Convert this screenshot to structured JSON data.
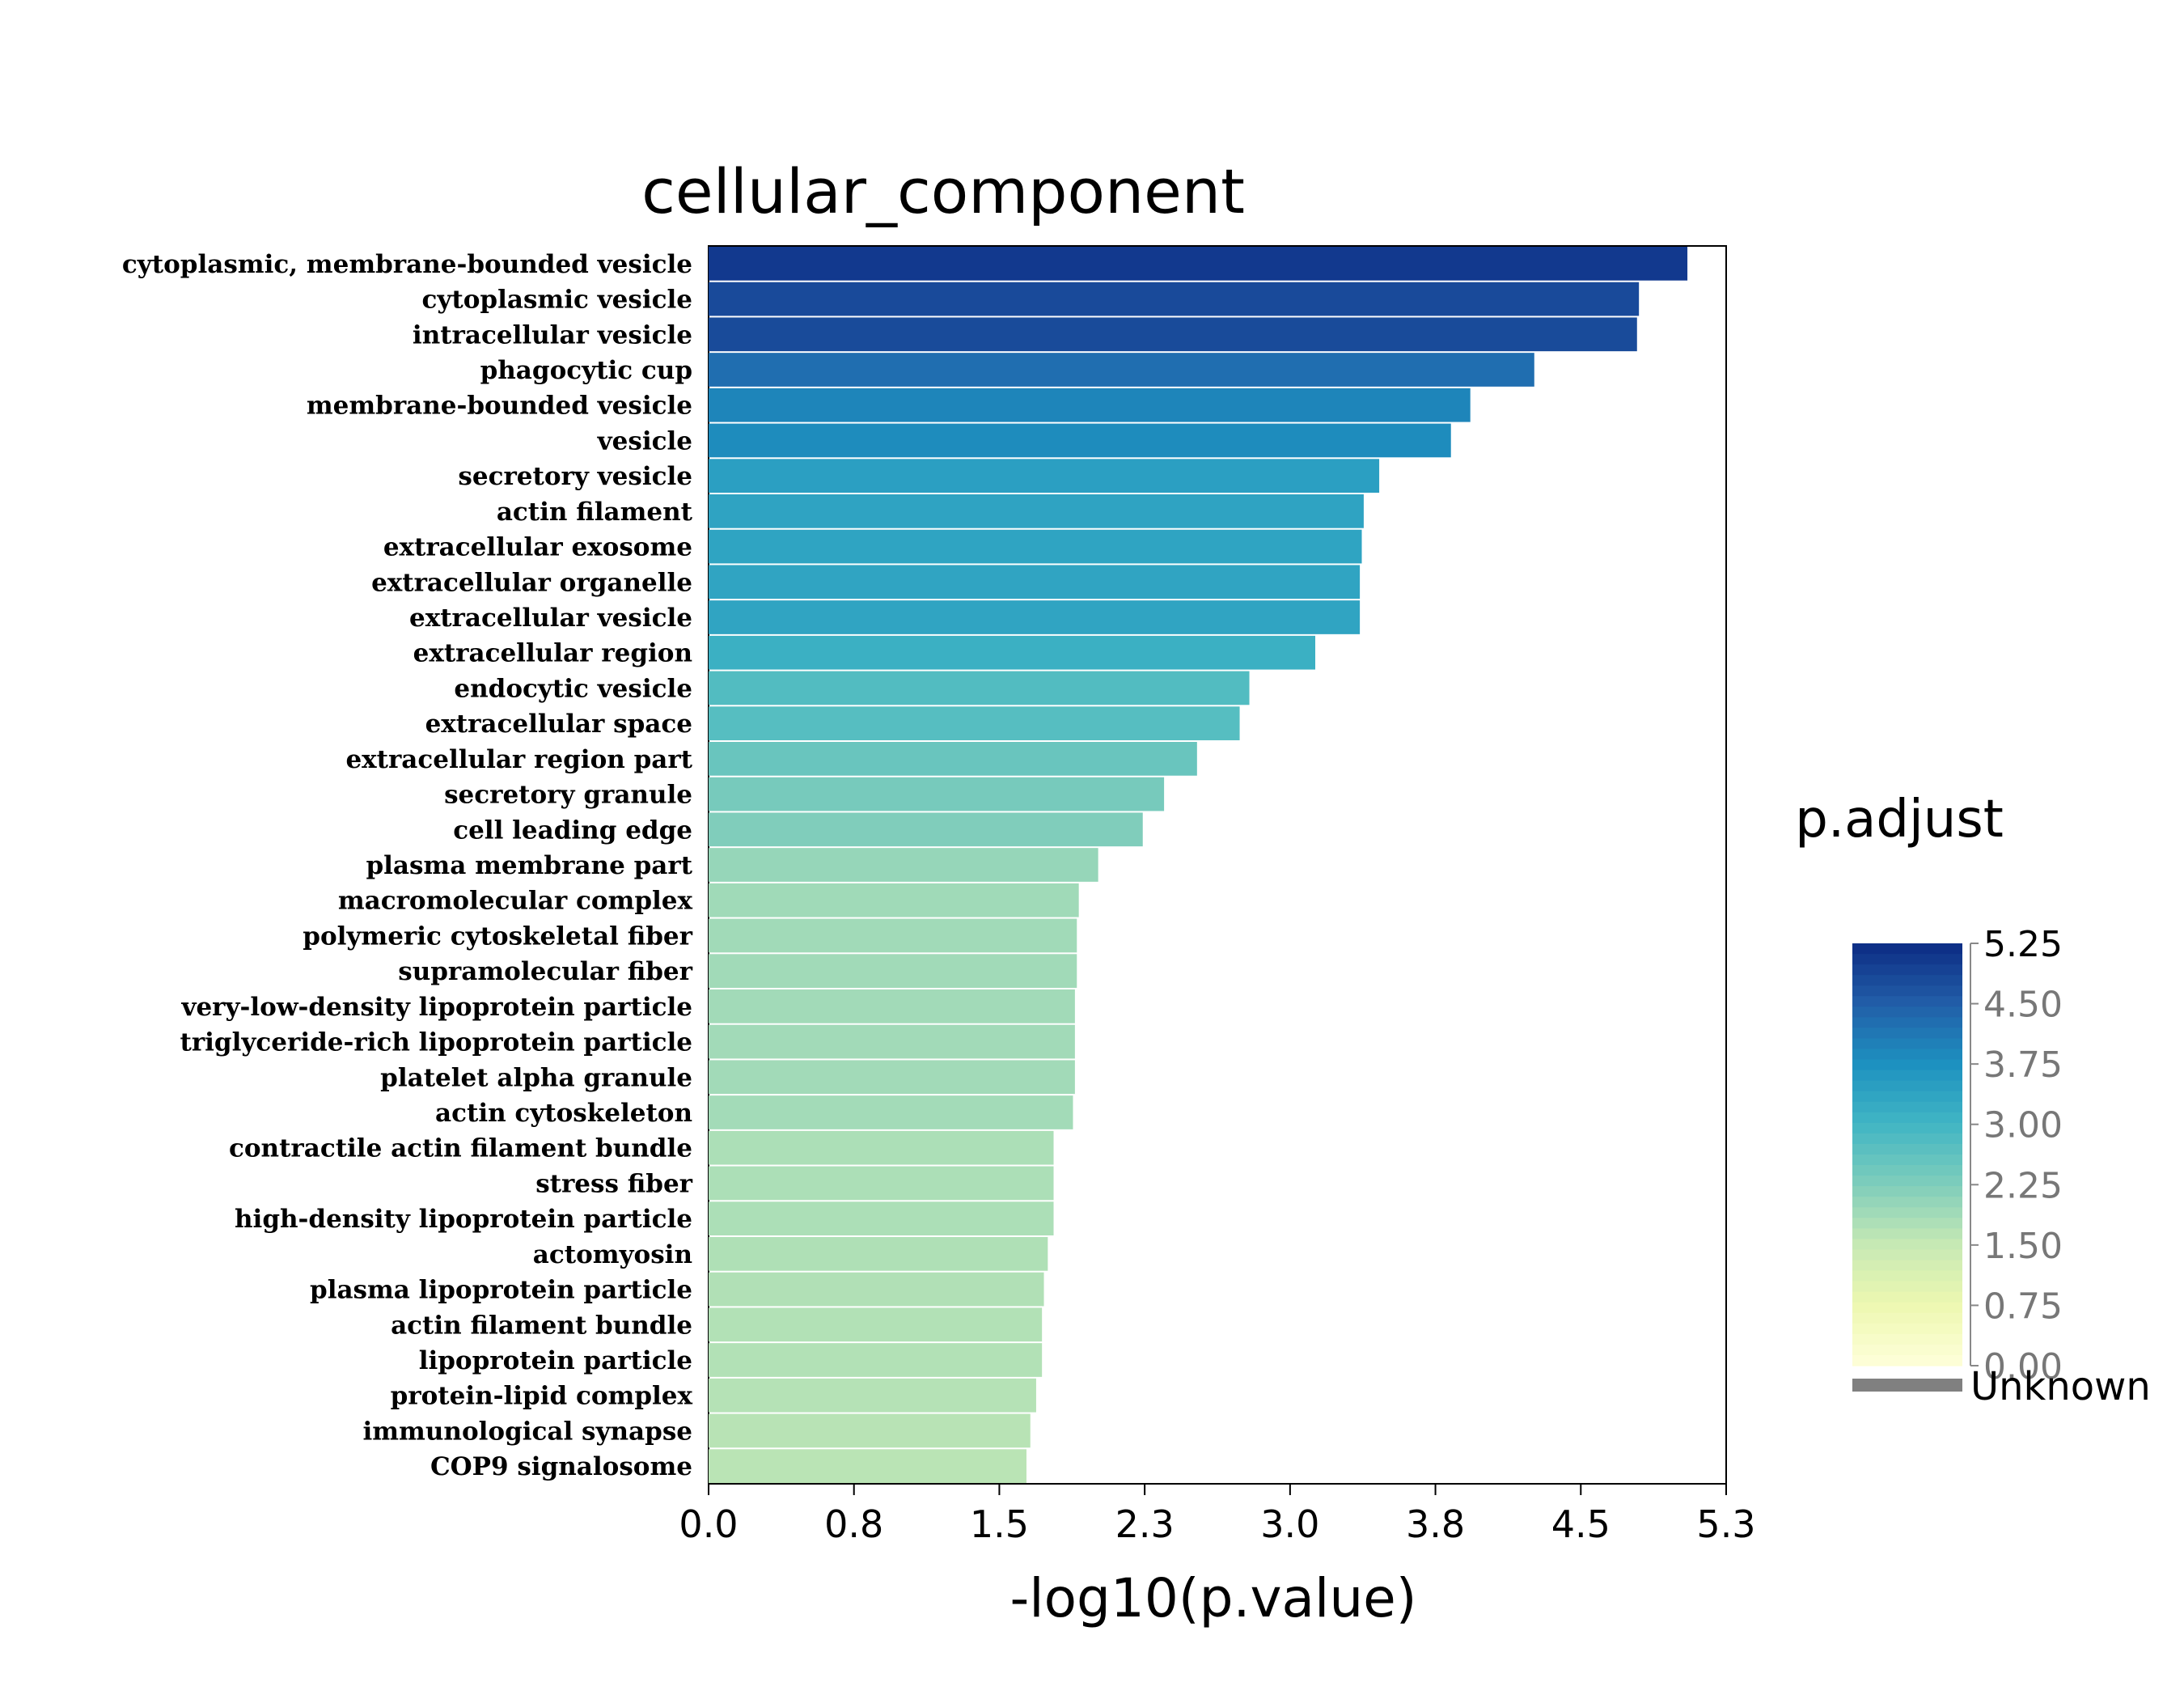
{
  "chart_data": {
    "type": "bar",
    "orientation": "horizontal",
    "title": "cellular_component",
    "xlabel": "-log10(p.value)",
    "ylabel": "",
    "xlim": [
      0,
      5.25
    ],
    "x_ticks": [
      "0.0",
      "0.8",
      "1.5",
      "2.3",
      "3.0",
      "3.8",
      "4.5",
      "5.3"
    ],
    "x_tick_values": [
      0,
      0.75,
      1.5,
      2.25,
      3.0,
      3.75,
      4.5,
      5.25
    ],
    "categories": [
      "cytoplasmic, membrane-bounded vesicle",
      "cytoplasmic vesicle",
      "intracellular vesicle",
      "phagocytic cup",
      "membrane-bounded vesicle",
      "vesicle",
      "secretory vesicle",
      "actin filament",
      "extracellular exosome",
      "extracellular organelle",
      "extracellular vesicle",
      "extracellular region",
      "endocytic vesicle",
      "extracellular space",
      "extracellular region part",
      "secretory granule",
      "cell leading edge",
      "plasma membrane part",
      "macromolecular complex",
      "polymeric cytoskeletal fiber",
      "supramolecular fiber",
      "very-low-density lipoprotein particle",
      "triglyceride-rich lipoprotein particle",
      "platelet alpha granule",
      "actin cytoskeleton",
      "contractile actin filament bundle",
      "stress fiber",
      "high-density lipoprotein particle",
      "actomyosin",
      "plasma lipoprotein particle",
      "actin filament bundle",
      "lipoprotein particle",
      "protein-lipid complex",
      "immunological synapse",
      "COP9 signalosome"
    ],
    "values": [
      5.05,
      4.8,
      4.79,
      4.26,
      3.93,
      3.83,
      3.46,
      3.38,
      3.37,
      3.36,
      3.36,
      3.13,
      2.79,
      2.74,
      2.52,
      2.35,
      2.24,
      2.01,
      1.91,
      1.9,
      1.9,
      1.89,
      1.89,
      1.89,
      1.88,
      1.78,
      1.78,
      1.78,
      1.75,
      1.73,
      1.72,
      1.72,
      1.69,
      1.66,
      1.64
    ],
    "color_values": [
      5.05,
      4.8,
      4.79,
      4.26,
      3.93,
      3.83,
      3.46,
      3.38,
      3.37,
      3.36,
      3.36,
      3.13,
      2.79,
      2.74,
      2.52,
      2.35,
      2.24,
      2.01,
      1.91,
      1.9,
      1.9,
      1.89,
      1.89,
      1.89,
      1.88,
      1.78,
      1.78,
      1.78,
      1.75,
      1.73,
      1.72,
      1.72,
      1.69,
      1.66,
      1.64
    ],
    "legend": {
      "title": "p.adjust",
      "placement": "right",
      "ticks": [
        "5.25",
        "4.50",
        "3.75",
        "3.00",
        "2.25",
        "1.50",
        "0.75",
        "0.00"
      ],
      "tick_values": [
        5.25,
        4.5,
        3.75,
        3.0,
        2.25,
        1.5,
        0.75,
        0.0
      ],
      "range": [
        0,
        5.25
      ],
      "unknown_label": "Unknown",
      "unknown_color": "#808080"
    },
    "colorscale": [
      "#ffffd9",
      "#edf8b1",
      "#c7e9b4",
      "#7fcdbb",
      "#41b6c4",
      "#1d91c0",
      "#225ea8",
      "#0c2c84"
    ],
    "grid": false
  }
}
